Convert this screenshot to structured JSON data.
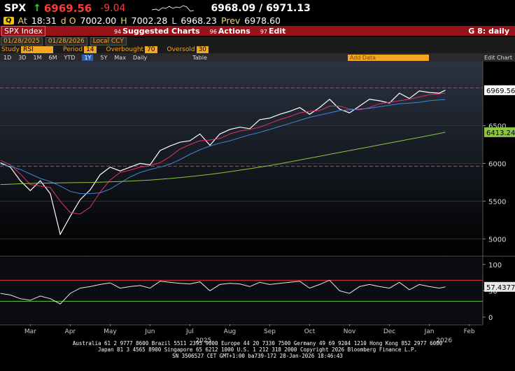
{
  "header": {
    "ticker": "SPX",
    "arrow": "↑",
    "last": "6969.56",
    "change": "-9.04",
    "bid_ask": "6968.09 / 6971.13",
    "quote": [
      {
        "label": "At",
        "value": "18:31"
      },
      {
        "label": "d O",
        "value": "7002.00"
      },
      {
        "label": "H",
        "value": "7002.28"
      },
      {
        "label": "L",
        "value": "6968.23"
      },
      {
        "label": "Prev",
        "value": "6978.60"
      }
    ]
  },
  "menu": {
    "security": "SPX Index",
    "items": [
      {
        "key": "94",
        "label": "Suggested Charts"
      },
      {
        "key": "96",
        "label": "Actions"
      },
      {
        "key": "97",
        "label": "Edit"
      }
    ],
    "right": "G 8: daily"
  },
  "range": {
    "start": "01/28/2025",
    "end": "01/28/2026",
    "currency": "Local CCY"
  },
  "study": {
    "label": "Study",
    "name": "RSI",
    "fields": [
      {
        "label": "Period",
        "value": "14"
      },
      {
        "label": "Overbought",
        "value": "70"
      },
      {
        "label": "Oversold",
        "value": "30"
      }
    ]
  },
  "toolbar": {
    "buttons": [
      "1D",
      "3D",
      "1M",
      "6M",
      "YTD",
      "1Y",
      "5Y",
      "Max"
    ],
    "active": "1Y",
    "frequency": "Daily",
    "table": "Table",
    "add_data": "Add Data",
    "edit_chart": "Edit Chart"
  },
  "chart_data": [
    {
      "type": "line",
      "xlim": [
        1.74,
        13.84
      ],
      "ylim": [
        4780,
        7330
      ],
      "yticks": [
        5000,
        5500,
        6000,
        6500
      ],
      "grid": true,
      "x": [
        1.75,
        2,
        2.25,
        2.5,
        2.75,
        3,
        3.25,
        3.5,
        3.75,
        4,
        4.25,
        4.5,
        4.75,
        5,
        5.25,
        5.5,
        5.75,
        6,
        6.25,
        6.5,
        6.75,
        7,
        7.25,
        7.5,
        7.75,
        8,
        8.25,
        8.5,
        8.75,
        9,
        9.25,
        9.5,
        9.75,
        10,
        10.25,
        10.5,
        10.75,
        11,
        11.25,
        11.5,
        11.75,
        12,
        12.25,
        12.5,
        12.75,
        12.9
      ],
      "hlines": [
        {
          "value": 7000,
          "color": "#e0303a"
        },
        {
          "value": 5963,
          "color": "#e0303a"
        }
      ],
      "series": [
        {
          "color": "#ffffff",
          "width": 1.2,
          "label_text_color": "#000000",
          "values": [
            6010,
            5950,
            5770,
            5640,
            5770,
            5600,
            5060,
            5300,
            5520,
            5650,
            5850,
            5950,
            5900,
            5950,
            6000,
            5980,
            6170,
            6230,
            6280,
            6300,
            6390,
            6240,
            6390,
            6450,
            6480,
            6460,
            6580,
            6600,
            6650,
            6690,
            6740,
            6650,
            6740,
            6850,
            6720,
            6670,
            6760,
            6850,
            6830,
            6800,
            6930,
            6860,
            6960,
            6940,
            6930,
            6969.56
          ]
        },
        {
          "color": "#e0306a",
          "width": 1,
          "values": [
            6040,
            5980,
            5860,
            5720,
            5700,
            5680,
            5500,
            5350,
            5330,
            5420,
            5620,
            5780,
            5880,
            5910,
            5950,
            5970,
            6010,
            6090,
            6190,
            6250,
            6300,
            6310,
            6330,
            6390,
            6430,
            6450,
            6480,
            6530,
            6580,
            6620,
            6670,
            6690,
            6700,
            6760,
            6760,
            6720,
            6710,
            6740,
            6790,
            6810,
            6830,
            6850,
            6880,
            6910,
            6920,
            6930
          ]
        },
        {
          "color": "#3f86d8",
          "width": 1,
          "values": [
            5990,
            5960,
            5920,
            5860,
            5800,
            5760,
            5700,
            5630,
            5600,
            5600,
            5610,
            5660,
            5740,
            5820,
            5880,
            5920,
            5950,
            5990,
            6050,
            6120,
            6180,
            6230,
            6270,
            6300,
            6340,
            6380,
            6410,
            6450,
            6490,
            6530,
            6570,
            6610,
            6640,
            6670,
            6700,
            6710,
            6720,
            6730,
            6750,
            6770,
            6790,
            6800,
            6810,
            6830,
            6840,
            6847
          ]
        },
        {
          "color": "#8cc63f",
          "width": 1,
          "label_text_color": "#000000",
          "values": [
            5720,
            5725,
            5730,
            5735,
            5738,
            5740,
            5742,
            5744,
            5746,
            5748,
            5752,
            5756,
            5760,
            5766,
            5772,
            5780,
            5790,
            5800,
            5812,
            5826,
            5840,
            5855,
            5872,
            5890,
            5910,
            5930,
            5950,
            5972,
            5995,
            6020,
            6045,
            6070,
            6095,
            6120,
            6145,
            6170,
            6195,
            6220,
            6245,
            6270,
            6295,
            6320,
            6345,
            6370,
            6395,
            6413.24
          ]
        }
      ]
    },
    {
      "type": "line",
      "xlim": [
        1.74,
        13.84
      ],
      "ylim": [
        -12,
        113
      ],
      "yticks": [
        0,
        50,
        100
      ],
      "grid": false,
      "x": [
        1.75,
        2,
        2.25,
        2.5,
        2.75,
        3,
        3.25,
        3.5,
        3.75,
        4,
        4.25,
        4.5,
        4.75,
        5,
        5.25,
        5.5,
        5.75,
        6,
        6.25,
        6.5,
        6.75,
        7,
        7.25,
        7.5,
        7.75,
        8,
        8.25,
        8.5,
        8.75,
        9,
        9.25,
        9.5,
        9.75,
        10,
        10.25,
        10.5,
        10.75,
        11,
        11.25,
        11.5,
        11.75,
        12,
        12.25,
        12.5,
        12.75,
        12.9
      ],
      "hlines": [
        {
          "value": 70,
          "color": "#e0303a"
        },
        {
          "value": 30,
          "color": "#5cc43c"
        }
      ],
      "series": [
        {
          "color": "#e8e8e8",
          "width": 1,
          "label_text_color": "#000000",
          "values": [
            45,
            42,
            35,
            32,
            40,
            35,
            25,
            45,
            55,
            58,
            62,
            65,
            55,
            58,
            60,
            55,
            68,
            66,
            64,
            63,
            67,
            50,
            62,
            64,
            63,
            58,
            66,
            62,
            64,
            66,
            68,
            55,
            62,
            70,
            50,
            45,
            58,
            62,
            58,
            55,
            66,
            52,
            62,
            58,
            55,
            57.4377
          ]
        }
      ],
      "xticks": [
        {
          "value": 2.5,
          "label": "Mar"
        },
        {
          "value": 3.5,
          "label": "Apr"
        },
        {
          "value": 4.5,
          "label": "May"
        },
        {
          "value": 5.5,
          "label": "Jun"
        },
        {
          "value": 6.5,
          "label": "Jul"
        },
        {
          "value": 7.5,
          "label": "Aug"
        },
        {
          "value": 8.5,
          "label": "Sep"
        },
        {
          "value": 9.5,
          "label": "Oct"
        },
        {
          "value": 10.5,
          "label": "Nov"
        },
        {
          "value": 11.5,
          "label": "Dec"
        },
        {
          "value": 12.5,
          "label": "Jan"
        },
        {
          "value": 13.5,
          "label": "Feb"
        }
      ],
      "year_labels": [
        {
          "value": 6.84,
          "label": "2025"
        },
        {
          "value": 12.87,
          "label": "2026"
        }
      ]
    }
  ],
  "footer": [
    "Australia 61 2 9777 8600 Brazil 5511 2395 9000 Europe 44 20 7330 7500 Germany 49 69 9204 1210 Hong Kong 852 2977 6000",
    "Japan 81 3 4565 8900   Singapore 65 6212 1000   U.S. 1 212 318 2000   Copyright 2026 Bloomberg Finance L.P.",
    "SN 3506527 CET  GMT+1:00 ba739-172 28-Jan-2026 18:46:43"
  ]
}
